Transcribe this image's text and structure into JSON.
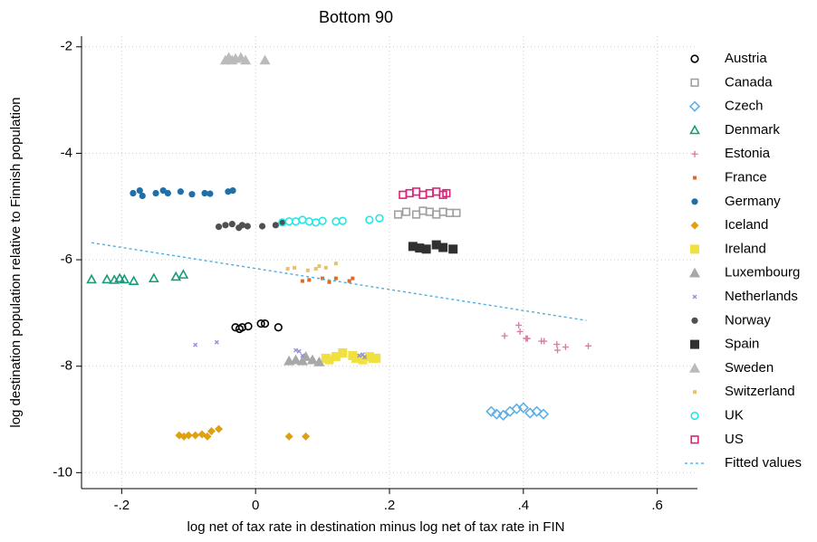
{
  "chart_data": {
    "type": "scatter",
    "title": "Bottom 90",
    "x_label": "log net of tax rate in destination minus log net of tax rate in FIN",
    "y_label": "log destination population relative to Finnish population",
    "xlim": [
      -0.26,
      0.66
    ],
    "ylim": [
      -10.3,
      -1.8
    ],
    "xticks": [
      {
        "value": -0.2,
        "label": "-.2"
      },
      0,
      {
        "value": 0.2,
        "label": ".2"
      },
      {
        "value": 0.4,
        "label": ".4"
      },
      {
        "value": 0.6,
        "label": ".6"
      }
    ],
    "yticks": [
      -2,
      -4,
      -6,
      -8,
      -10
    ],
    "grid": true,
    "legend": "right",
    "series": [
      {
        "name": "Austria",
        "color": "#000000",
        "marker": "circle-open",
        "x": [
          -0.03,
          -0.024,
          -0.02,
          -0.011,
          0.008,
          0.014,
          0.034
        ],
        "values": [
          -7.27,
          -7.3,
          -7.27,
          -7.25,
          -7.2,
          -7.2,
          -7.27
        ]
      },
      {
        "name": "Canada",
        "color": "#a0a0a0",
        "marker": "square-open",
        "x": [
          0.213,
          0.225,
          0.24,
          0.25,
          0.26,
          0.27,
          0.28,
          0.29,
          0.3
        ],
        "values": [
          -5.15,
          -5.1,
          -5.15,
          -5.08,
          -5.1,
          -5.15,
          -5.1,
          -5.12,
          -5.12
        ]
      },
      {
        "name": "Czech",
        "color": "#5fb0e6",
        "marker": "diamond-open",
        "x": [
          0.352,
          0.36,
          0.37,
          0.38,
          0.39,
          0.4,
          0.41,
          0.42,
          0.43
        ],
        "values": [
          -8.85,
          -8.9,
          -8.92,
          -8.85,
          -8.8,
          -8.78,
          -8.88,
          -8.85,
          -8.9
        ]
      },
      {
        "name": "Denmark",
        "color": "#1a9a78",
        "marker": "triangle-open",
        "x": [
          -0.245,
          -0.222,
          -0.211,
          -0.203,
          -0.196,
          -0.182,
          -0.152,
          -0.119,
          -0.108
        ],
        "values": [
          -6.37,
          -6.37,
          -6.38,
          -6.35,
          -6.37,
          -6.4,
          -6.35,
          -6.32,
          -6.28
        ]
      },
      {
        "name": "Estonia",
        "color": "#d680a8",
        "marker": "plus",
        "x": [
          0.372,
          0.393,
          0.395,
          0.404,
          0.406,
          0.427,
          0.431,
          0.45,
          0.451,
          0.463,
          0.497
        ],
        "values": [
          -7.43,
          -7.23,
          -7.35,
          -7.48,
          -7.48,
          -7.53,
          -7.53,
          -7.59,
          -7.7,
          -7.64,
          -7.62
        ]
      },
      {
        "name": "France",
        "color": "#e0692a",
        "marker": "square-small",
        "x": [
          0.07,
          0.08,
          0.1,
          0.11,
          0.12,
          0.14,
          0.145
        ],
        "values": [
          -6.4,
          -6.38,
          -6.35,
          -6.42,
          -6.35,
          -6.4,
          -6.35
        ]
      },
      {
        "name": "Germany",
        "color": "#1f6fa8",
        "marker": "circle",
        "x": [
          -0.183,
          -0.173,
          -0.169,
          -0.149,
          -0.138,
          -0.131,
          -0.112,
          -0.095,
          -0.076,
          -0.068,
          -0.041,
          -0.034
        ],
        "values": [
          -4.75,
          -4.7,
          -4.8,
          -4.75,
          -4.7,
          -4.75,
          -4.72,
          -4.77,
          -4.75,
          -4.76,
          -4.72,
          -4.7
        ]
      },
      {
        "name": "Iceland",
        "color": "#e0a010",
        "marker": "diamond",
        "x": [
          -0.114,
          -0.107,
          -0.1,
          -0.09,
          -0.08,
          -0.072,
          -0.066,
          -0.055,
          0.05,
          0.075
        ],
        "values": [
          -9.3,
          -9.32,
          -9.3,
          -9.3,
          -9.28,
          -9.32,
          -9.22,
          -9.18,
          -9.32,
          -9.32
        ]
      },
      {
        "name": "Ireland",
        "color": "#f0e040",
        "marker": "square",
        "x": [
          0.105,
          0.11,
          0.12,
          0.13,
          0.145,
          0.15,
          0.16,
          0.17,
          0.175,
          0.18
        ],
        "values": [
          -7.85,
          -7.88,
          -7.82,
          -7.75,
          -7.8,
          -7.85,
          -7.88,
          -7.82,
          -7.85,
          -7.85
        ]
      },
      {
        "name": "Luxembourg",
        "color": "#a8a8a8",
        "marker": "triangle",
        "x": [
          0.05,
          0.06,
          0.07,
          0.075,
          0.085,
          0.095
        ],
        "values": [
          -7.9,
          -7.88,
          -7.9,
          -7.82,
          -7.88,
          -7.92
        ]
      },
      {
        "name": "Netherlands",
        "color": "#9090e0",
        "marker": "x",
        "x": [
          -0.09,
          -0.058,
          0.06,
          0.065,
          0.07,
          0.155,
          0.16,
          0.163
        ],
        "values": [
          -7.6,
          -7.55,
          -7.7,
          -7.72,
          -7.8,
          -7.8,
          -7.78,
          -7.83
        ]
      },
      {
        "name": "Norway",
        "color": "#505050",
        "marker": "circle",
        "x": [
          -0.055,
          -0.045,
          -0.035,
          -0.025,
          -0.02,
          -0.012,
          0.01,
          0.03,
          0.04
        ],
        "values": [
          -5.38,
          -5.35,
          -5.33,
          -5.4,
          -5.35,
          -5.37,
          -5.37,
          -5.35,
          -5.3
        ]
      },
      {
        "name": "Spain",
        "color": "#303030",
        "marker": "square",
        "x": [
          0.235,
          0.245,
          0.255,
          0.27,
          0.28,
          0.295
        ],
        "values": [
          -5.75,
          -5.78,
          -5.8,
          -5.72,
          -5.77,
          -5.8
        ]
      },
      {
        "name": "Sweden",
        "color": "#bbbbbb",
        "marker": "triangle",
        "x": [
          -0.045,
          -0.04,
          -0.035,
          -0.03,
          -0.022,
          -0.015,
          0.014
        ],
        "values": [
          -2.25,
          -2.2,
          -2.25,
          -2.22,
          -2.2,
          -2.25,
          -2.25
        ]
      },
      {
        "name": "Switzerland",
        "color": "#e8c070",
        "marker": "square-small",
        "x": [
          0.048,
          0.058,
          0.078,
          0.09,
          0.095,
          0.105,
          0.12
        ],
        "values": [
          -6.17,
          -6.15,
          -6.2,
          -6.17,
          -6.12,
          -6.15,
          -6.07
        ]
      },
      {
        "name": "UK",
        "color": "#20e8e8",
        "marker": "circle-open",
        "x": [
          0.04,
          0.05,
          0.06,
          0.07,
          0.08,
          0.09,
          0.1,
          0.12,
          0.13,
          0.17,
          0.185
        ],
        "values": [
          -5.3,
          -5.28,
          -5.28,
          -5.25,
          -5.28,
          -5.3,
          -5.27,
          -5.28,
          -5.27,
          -5.25,
          -5.22
        ]
      },
      {
        "name": "US",
        "color": "#e0207a",
        "marker": "square-open",
        "x": [
          0.22,
          0.23,
          0.24,
          0.25,
          0.26,
          0.27,
          0.28,
          0.285
        ],
        "values": [
          -4.78,
          -4.75,
          -4.72,
          -4.78,
          -4.75,
          -4.72,
          -4.78,
          -4.75
        ]
      },
      {
        "name": "Fitted values",
        "color": "#4ab0e0",
        "marker": "line-dashed",
        "x": [
          -0.245,
          0.494
        ],
        "values": [
          -5.68,
          -7.14
        ]
      }
    ]
  }
}
